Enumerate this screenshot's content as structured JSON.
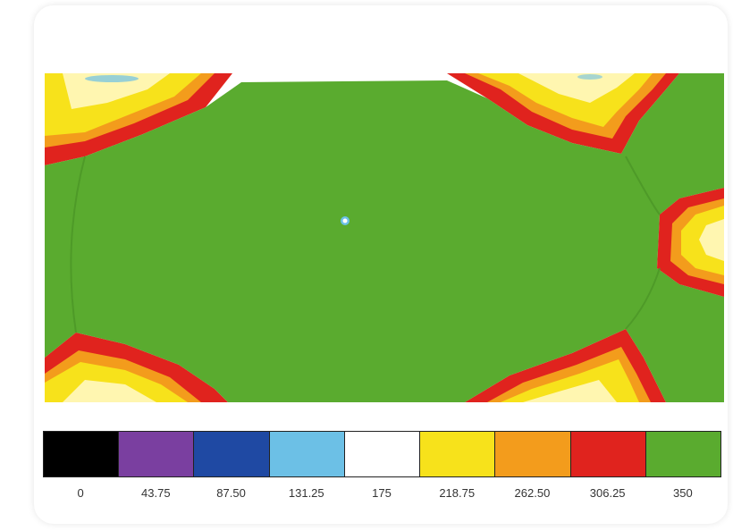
{
  "chart_data": {
    "type": "heatmap",
    "title": "",
    "xlabel": "",
    "ylabel": "",
    "colorbar": {
      "ticks": [
        "0",
        "43.75",
        "87.50",
        "131.25",
        "175",
        "218.75",
        "262.50",
        "306.25",
        "350"
      ],
      "colors": [
        "#000000",
        "#7a3fa0",
        "#1f49a3",
        "#6cc0e6",
        "#ffffff",
        "#f7e21b",
        "#f39c1c",
        "#e0231e",
        "#5aab2f"
      ],
      "range": [
        0,
        350
      ]
    },
    "regions": [
      {
        "name": "center-field",
        "value": 350
      },
      {
        "name": "top-left-corner",
        "value_range": [
          218.75,
          306.25
        ]
      },
      {
        "name": "top-right-corner",
        "value_range": [
          218.75,
          306.25
        ]
      },
      {
        "name": "bottom-left-corner",
        "value_range": [
          218.75,
          306.25
        ]
      },
      {
        "name": "bottom-right-corner",
        "value_range": [
          218.75,
          306.25
        ]
      },
      {
        "name": "right-edge-middle",
        "value_range": [
          218.75,
          306.25
        ]
      },
      {
        "name": "center-spot",
        "value": 131.25
      }
    ]
  }
}
